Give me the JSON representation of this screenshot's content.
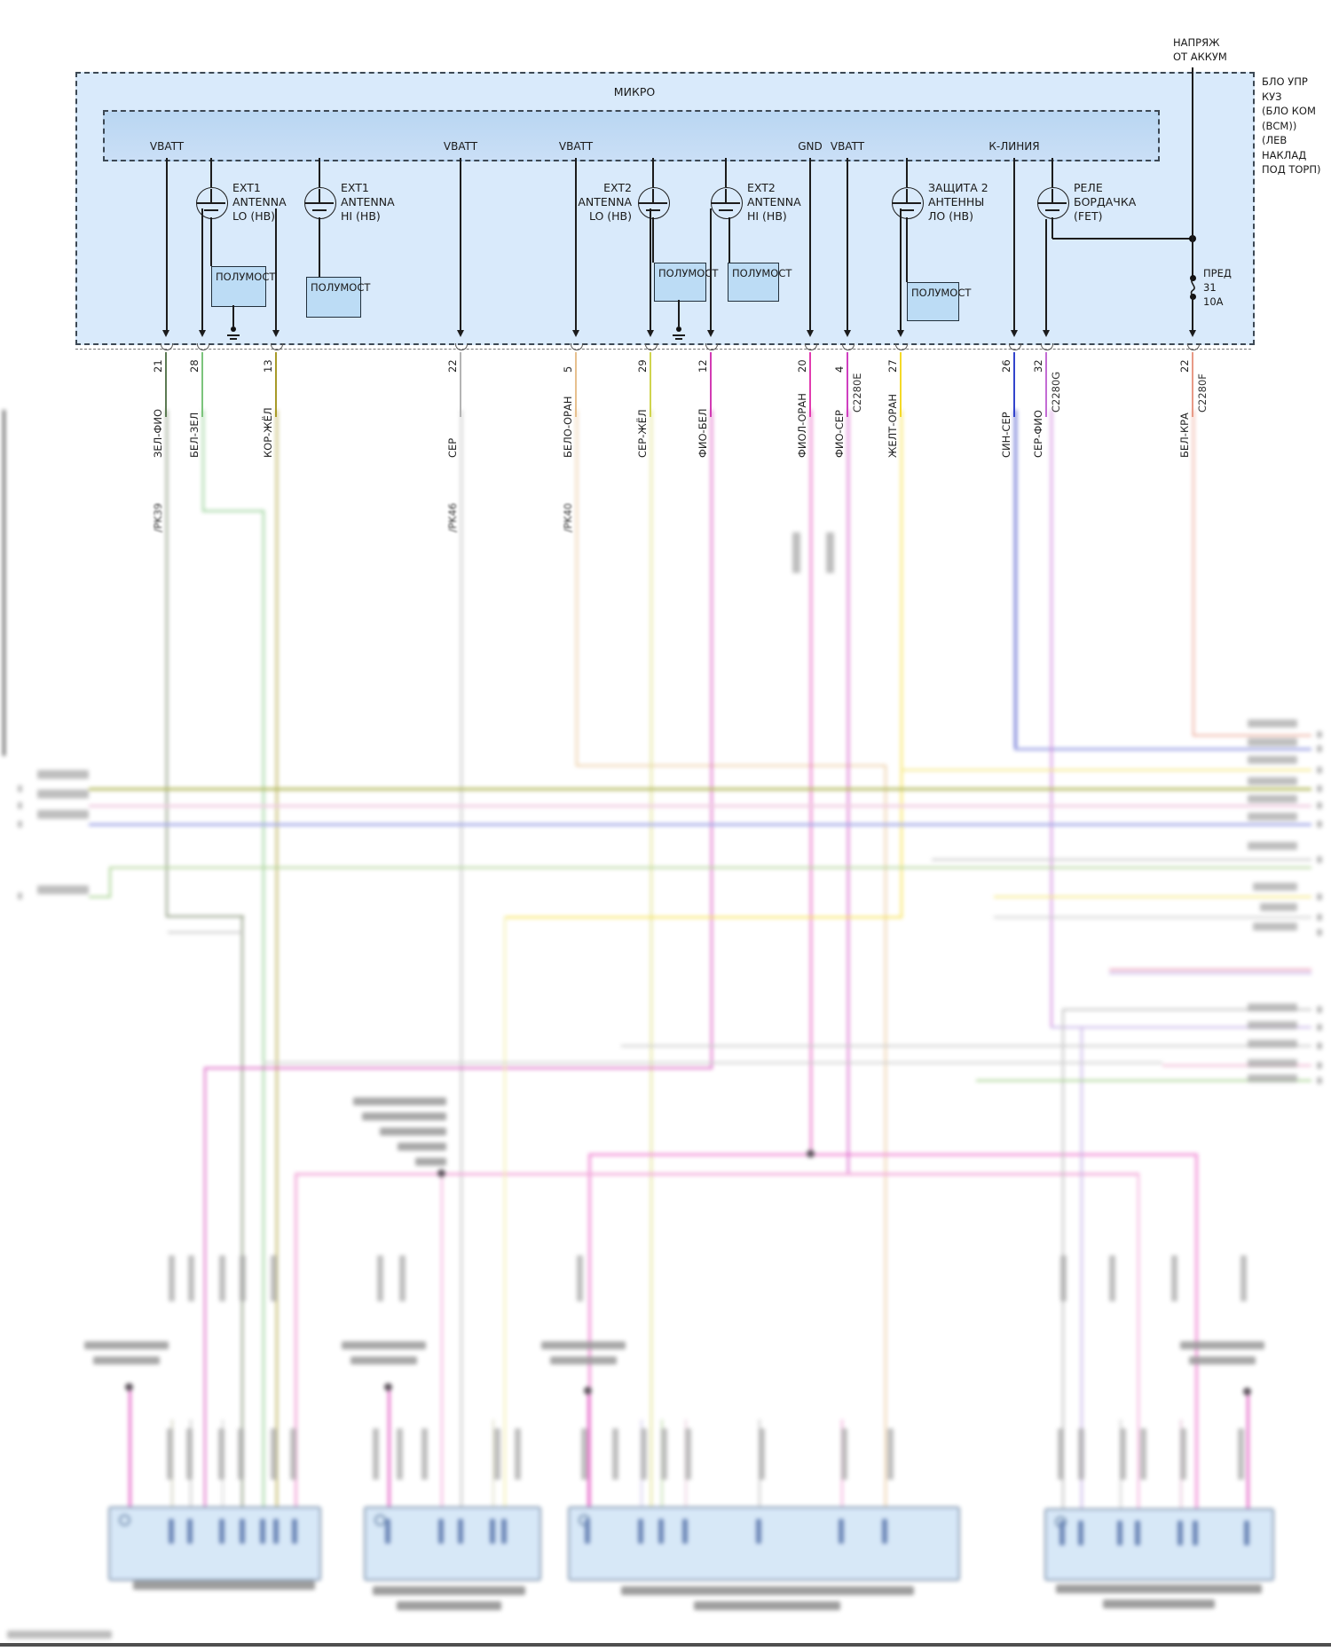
{
  "header": {
    "battery_feed_line1": "НАПРЯЖ",
    "battery_feed_line2": "ОТ АККУМ",
    "bcm_module_lines": [
      "БЛО УПР",
      "КУЗ",
      "(БЛО КОМ",
      "(ВСМ))",
      "(ЛЕВ НАКЛАД",
      "ПОД ТОРП)"
    ]
  },
  "module": {
    "micro_label": "МИКРО",
    "halfbridge_label": "ПОЛУМОСТ",
    "bus_pins": [
      {
        "label": "VBATT"
      },
      {
        "label": "VBATT"
      },
      {
        "label": "VBATT"
      },
      {
        "label": "GND"
      },
      {
        "label": "VBATT"
      },
      {
        "label": "К-ЛИНИЯ"
      }
    ],
    "drivers": [
      {
        "lines": "EXT1\nANTENNA\nLO (HB)"
      },
      {
        "lines": "EXT1\nANTENNA\nHI (HB)"
      },
      {
        "lines": "EXT2\nANTENNA\nLO (HB)"
      },
      {
        "lines": "EXT2\nANTENNA\nHI (HB)"
      },
      {
        "lines": "ЗАЩИТА 2\nАНТЕННЫ\nЛО (НВ)"
      },
      {
        "lines": "РЕЛЕ\nБОРДАЧКА\n(FET)"
      }
    ],
    "fuse": {
      "name": "ПРЕД",
      "number": "31",
      "rating": "10A"
    }
  },
  "connector_pins": [
    {
      "pin": "21",
      "wire": "ЗЕЛ-ФИО",
      "harness": "/PK39",
      "connector": "",
      "color": "#5c7a52"
    },
    {
      "pin": "28",
      "wire": "БЕЛ-ЗЕЛ",
      "harness": "",
      "connector": "",
      "color": "#7cc47c"
    },
    {
      "pin": "13",
      "wire": "КОР-ЖЁЛ",
      "harness": "",
      "connector": "",
      "color": "#a89a28"
    },
    {
      "pin": "22",
      "wire": "СЕР",
      "harness": "/PK46",
      "connector": "",
      "color": "#b4b4b4"
    },
    {
      "pin": "5",
      "wire": "БЕЛО-ОРАН",
      "harness": "/PK40",
      "connector": "",
      "color": "#e7c08e"
    },
    {
      "pin": "29",
      "wire": "СЕР-ЖЁЛ",
      "harness": "",
      "connector": "",
      "color": "#d0d44e"
    },
    {
      "pin": "12",
      "wire": "ФИО-БЕЛ",
      "harness": "",
      "connector": "",
      "color": "#d23bb4"
    },
    {
      "pin": "20",
      "wire": "ФИОЛ-ОРАН",
      "harness": "",
      "connector": "",
      "color": "#e23bb0"
    },
    {
      "pin": "4",
      "wire": "ФИО-СЕР",
      "harness": "",
      "connector": "C2280E",
      "color": "#cf3fc0"
    },
    {
      "pin": "27",
      "wire": "ЖЕЛТ-ОРАН",
      "harness": "",
      "connector": "",
      "color": "#f4d928"
    },
    {
      "pin": "26",
      "wire": "СИН-СЕР",
      "harness": "",
      "connector": "",
      "color": "#3344cc"
    },
    {
      "pin": "32",
      "wire": "СЕР-ФИО",
      "harness": "",
      "connector": "C2280G",
      "color": "#c36bd4"
    },
    {
      "pin": "22",
      "wire": "БЕЛ-КРА",
      "harness": "",
      "connector": "C2280F",
      "color": "#e89a86"
    }
  ],
  "colors": {
    "module_fill": "#d9eafb",
    "micro_fill": "#b9d6f2",
    "halfbridge_fill": "#bcdcf5",
    "connector_fill": "#cfe3f6",
    "bus_olive": "#a3ab3a",
    "bus_pink": "#ecc0da",
    "bus_periwinkle": "#9097e2",
    "bus_green": "#9cc87c"
  }
}
